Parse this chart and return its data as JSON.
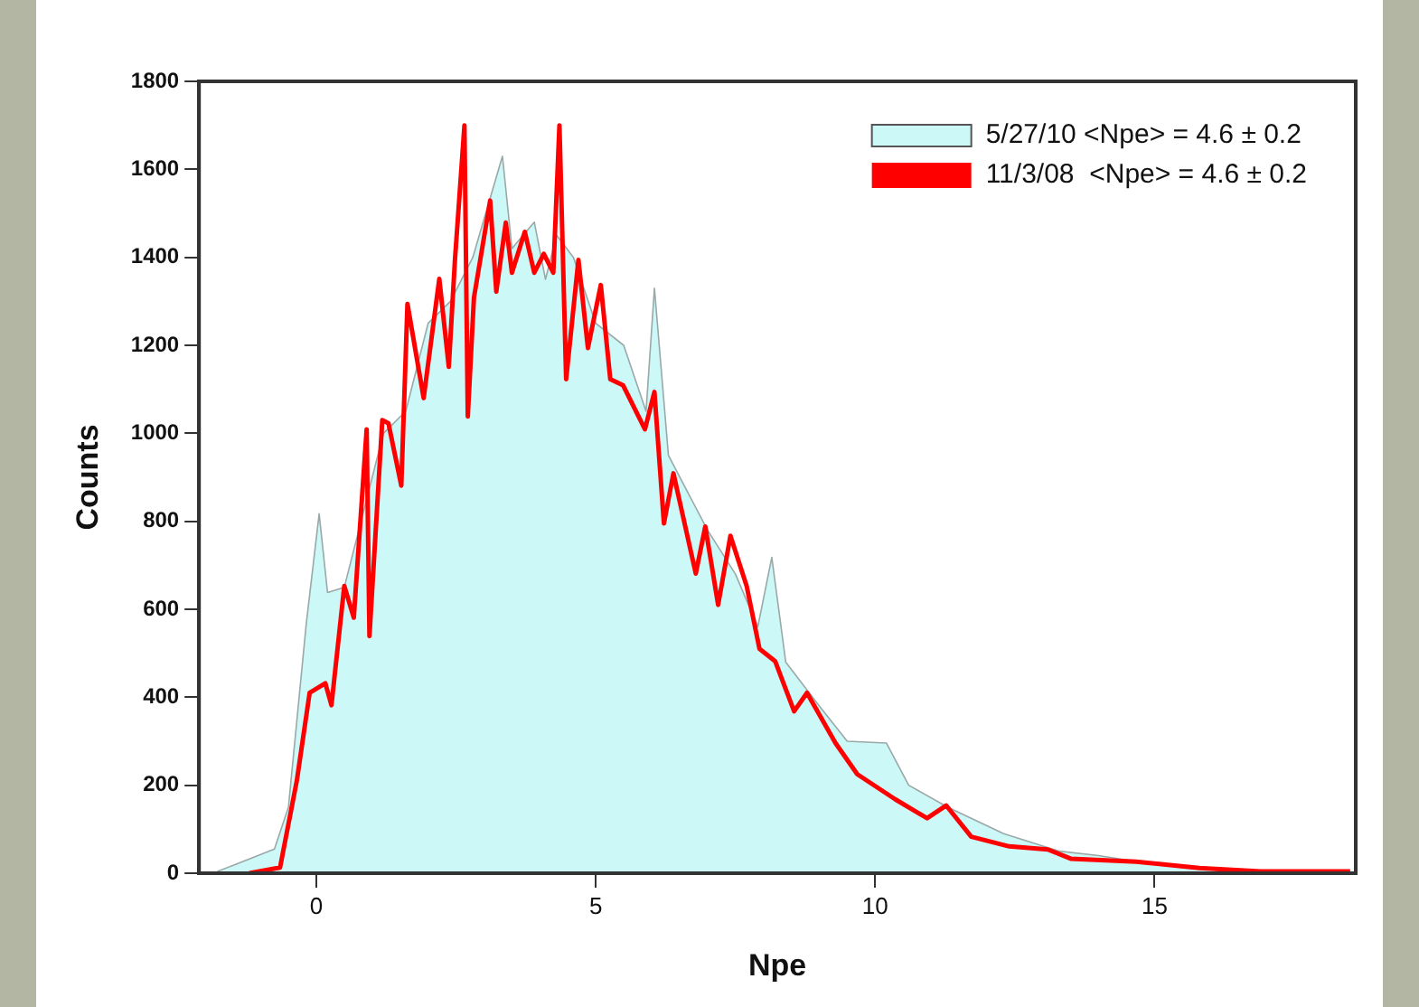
{
  "chart_data": {
    "type": "line",
    "xlabel": "Npe",
    "ylabel": "Counts",
    "xlim": [
      -2.1,
      18.6
    ],
    "xticks": [
      0,
      5,
      10,
      15
    ],
    "ylim": [
      0,
      1800
    ],
    "yticks": [
      0,
      200,
      400,
      600,
      800,
      1000,
      1200,
      1400,
      1600,
      1800
    ],
    "grid": false,
    "legend": "top right",
    "marker": "none",
    "series": [
      {
        "name": "5/27/10 <Npe> = 4.6 ± 0.2",
        "type": "area",
        "color": "#ccf8f8",
        "x": [
          -1.77,
          -0.75,
          -0.5,
          -0.18,
          0.05,
          0.2,
          0.5,
          0.9,
          1.2,
          1.6,
          2.0,
          2.4,
          2.8,
          3.33,
          3.5,
          3.9,
          4.1,
          4.3,
          4.6,
          5.0,
          5.5,
          5.9,
          6.05,
          6.3,
          7.0,
          7.5,
          7.9,
          8.15,
          8.4,
          9.0,
          9.5,
          10.2,
          10.6,
          11.3,
          12.3,
          13.3,
          14.0,
          15.0,
          16.0,
          17.0,
          18.5
        ],
        "values": [
          4,
          55,
          150,
          568,
          817,
          638,
          650,
          850,
          1000,
          1050,
          1250,
          1300,
          1400,
          1630,
          1420,
          1480,
          1350,
          1450,
          1400,
          1250,
          1200,
          1050,
          1330,
          950,
          780,
          680,
          560,
          718,
          480,
          380,
          300,
          296,
          200,
          150,
          90,
          50,
          40,
          20,
          10,
          5,
          3
        ]
      },
      {
        "name": "11/3/08  <Npe> = 4.6 ± 0.2",
        "color": "#ff0000",
        "x": [
          -1.2,
          -0.65,
          -0.35,
          -0.12,
          0.16,
          0.27,
          0.5,
          0.67,
          0.9,
          0.95,
          1.18,
          1.29,
          1.52,
          1.63,
          1.92,
          2.2,
          2.37,
          2.48,
          2.65,
          2.71,
          2.82,
          3.11,
          3.22,
          3.39,
          3.5,
          3.73,
          3.9,
          4.07,
          4.24,
          4.35,
          4.47,
          4.69,
          4.86,
          5.09,
          5.26,
          5.49,
          5.88,
          6.05,
          6.22,
          6.39,
          6.79,
          6.96,
          7.19,
          7.41,
          7.7,
          7.93,
          8.21,
          8.55,
          8.78,
          9.29,
          9.68,
          10.36,
          10.93,
          11.27,
          11.72,
          12.4,
          13.09,
          13.5,
          14.67,
          15.8,
          16.9,
          18.5
        ],
        "values": [
          0,
          13,
          210,
          410,
          432,
          382,
          653,
          581,
          1009,
          539,
          1030,
          1023,
          881,
          1294,
          1080,
          1351,
          1151,
          1394,
          1700,
          1038,
          1308,
          1529,
          1322,
          1479,
          1365,
          1458,
          1365,
          1408,
          1365,
          1700,
          1123,
          1394,
          1194,
          1337,
          1123,
          1109,
          1009,
          1094,
          795,
          909,
          681,
          788,
          610,
          767,
          653,
          510,
          482,
          368,
          410,
          296,
          225,
          168,
          125,
          154,
          83,
          61,
          54,
          33,
          26,
          12,
          4,
          4
        ]
      }
    ]
  }
}
